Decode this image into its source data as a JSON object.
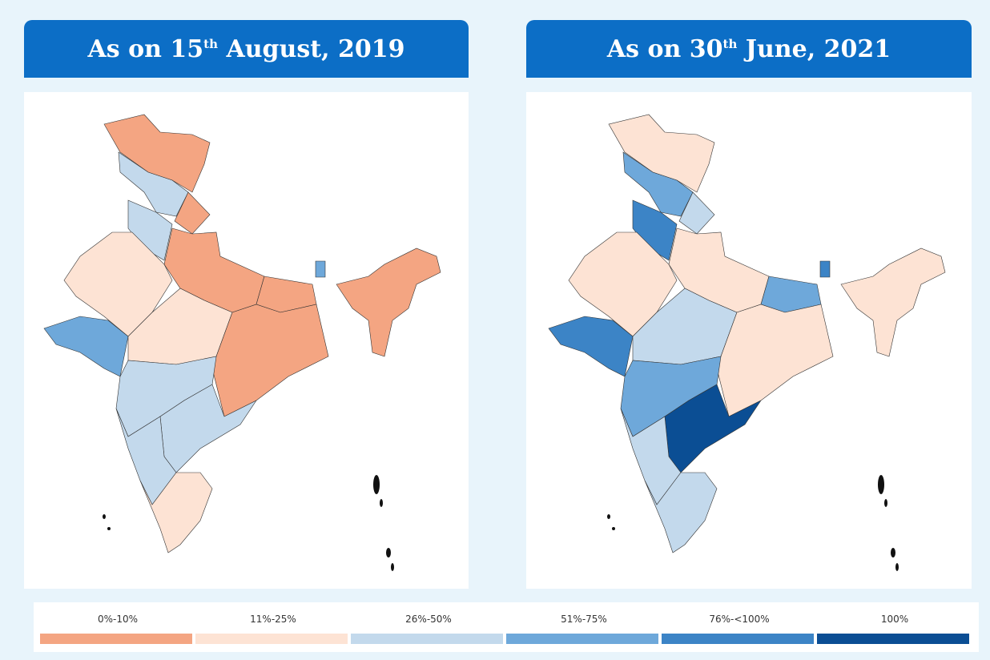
{
  "panels": [
    {
      "title": {
        "prefix": "As on 15",
        "sup": "th",
        "suffix": " August, 2019"
      }
    },
    {
      "title": {
        "prefix": "As on 30",
        "sup": "th",
        "suffix": " June, 2021"
      }
    }
  ],
  "legend": [
    {
      "label": "0%-10%",
      "color": "#f4a582"
    },
    {
      "label": "11%-25%",
      "color": "#fde3d4"
    },
    {
      "label": "26%-50%",
      "color": "#c3d9ec"
    },
    {
      "label": "51%-75%",
      "color": "#6ea8da"
    },
    {
      "label": "76%-<100%",
      "color": "#3c84c6"
    },
    {
      "label": "100%",
      "color": "#0b4e94"
    }
  ]
}
